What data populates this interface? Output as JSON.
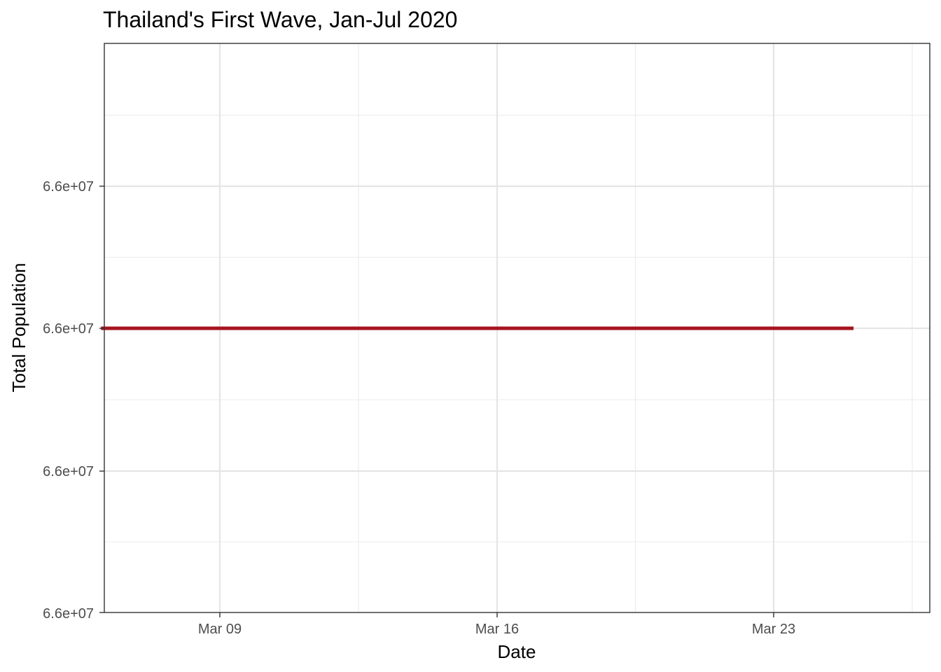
{
  "chart_data": {
    "type": "line",
    "title": "Thailand's First Wave, Jan-Jul 2020",
    "xlabel": "Date",
    "ylabel": "Total Population",
    "x_tick_labels": [
      "Mar 09",
      "Mar 16",
      "Mar 23"
    ],
    "y_tick_labels": [
      "6.6e+07",
      "6.6e+07",
      "6.6e+07",
      "6.6e+07"
    ],
    "series": [
      {
        "color": "#a6141e",
        "x": [
          "2020-03-06",
          "2020-03-25"
        ],
        "y": [
          66000000,
          66000000
        ]
      }
    ],
    "grid": true,
    "legend": "none"
  }
}
